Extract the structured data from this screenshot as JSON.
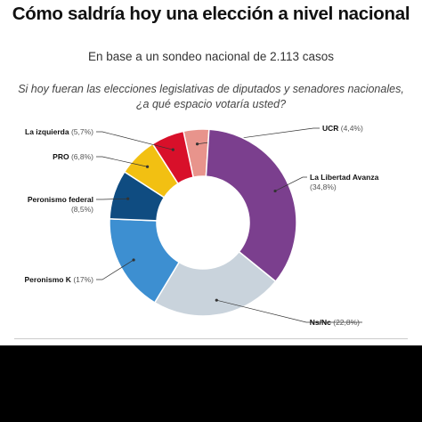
{
  "header": {
    "title": "Cómo saldría hoy una elección a nivel nacional",
    "subtitle": "En base a un sondeo nacional de 2.113 casos",
    "question": "Si hoy fueran las elecciones legislativas de diputados y senadores nacionales, ¿a qué espacio votaría usted?"
  },
  "chart_data": {
    "type": "pie",
    "donut": true,
    "title": "Cómo saldría hoy una elección a nivel nacional",
    "subtitle": "En base a un sondeo nacional de 2.113 casos",
    "categories": [
      "UCR",
      "La Libertad Avanza",
      "Ns/Nc",
      "Peronismo K",
      "Peronismo federal",
      "PRO",
      "La izquierda"
    ],
    "values": [
      4.4,
      34.8,
      22.8,
      17,
      8.5,
      6.8,
      5.7
    ],
    "value_labels": [
      "(4,4%)",
      "(34,8%)",
      "(22,8%)",
      "(17%)",
      "(8,5%)",
      "(6,8%)",
      "(5,7%)"
    ],
    "colors": [
      "#e8948c",
      "#7b3f8e",
      "#c9d3dc",
      "#3d8fd1",
      "#0f4c81",
      "#f2c012",
      "#d8102a"
    ],
    "legend": "callout labels"
  }
}
